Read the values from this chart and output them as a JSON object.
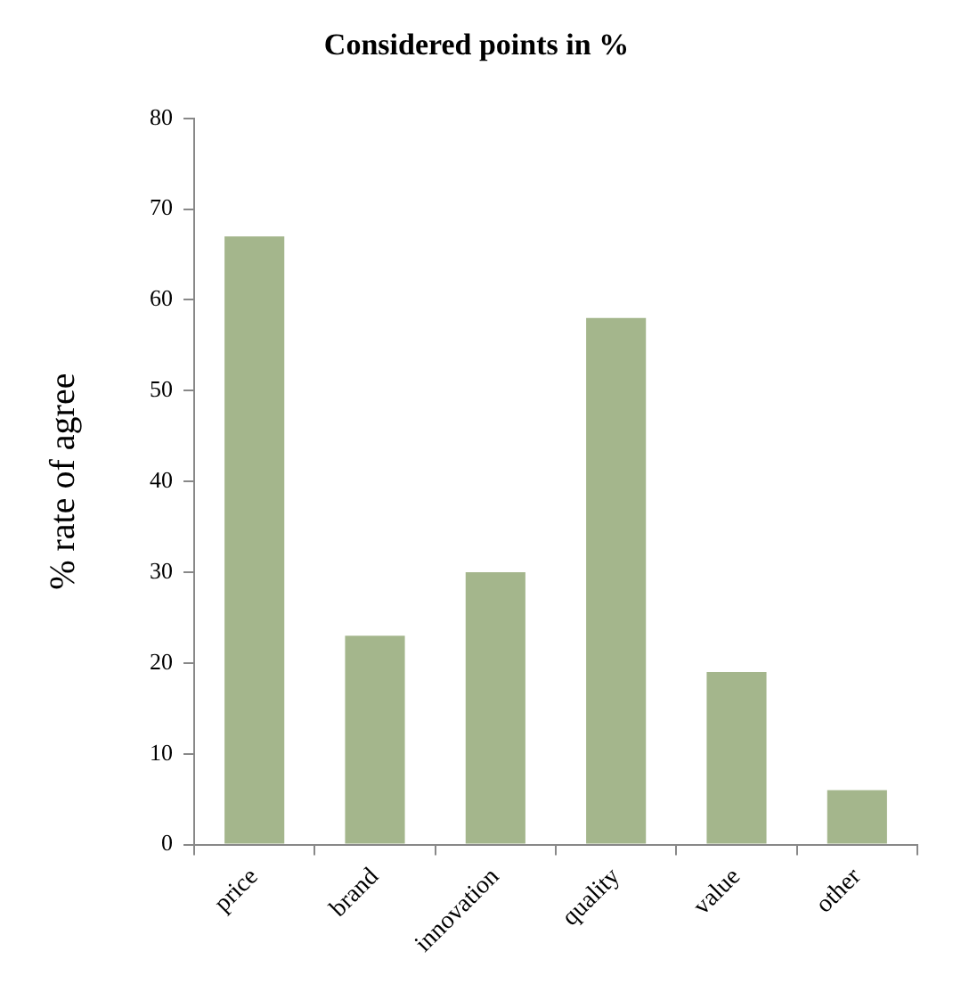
{
  "chart_data": {
    "type": "bar",
    "title": "Considered points in %",
    "ylabel": "% rate of agree",
    "categories": [
      "price",
      "brand",
      "innovation",
      "quality",
      "value",
      "other"
    ],
    "values": [
      67,
      23,
      30,
      58,
      19,
      6
    ],
    "color": "#a4b68c",
    "ylim": [
      0,
      80
    ],
    "yticks": [
      0,
      10,
      20,
      30,
      40,
      50,
      60,
      70,
      80
    ],
    "grid": false
  }
}
